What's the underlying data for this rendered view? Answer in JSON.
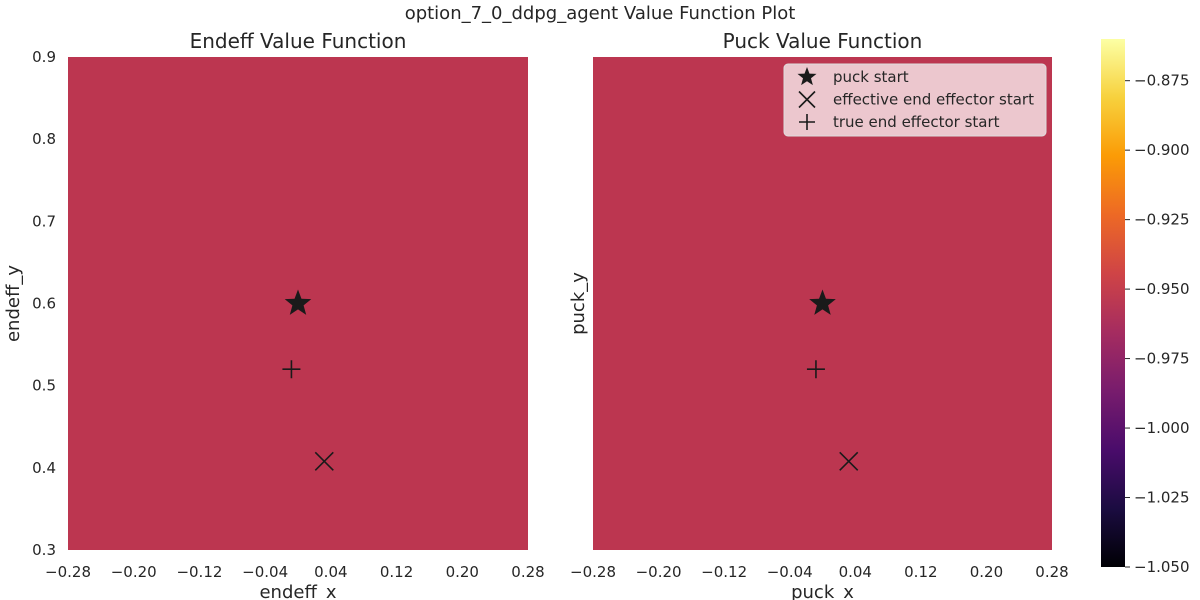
{
  "figure": {
    "suptitle": "option_7_0_ddpg_agent Value Function Plot"
  },
  "chart_data": [
    {
      "type": "heatmap",
      "title": "Endeff Value Function",
      "xlabel": "endeff_x",
      "ylabel": "endeff_y",
      "xlim": [
        -0.28,
        0.28
      ],
      "ylim": [
        0.3,
        0.9
      ],
      "xticks": [
        "−0.28",
        "−0.20",
        "−0.12",
        "−0.04",
        "0.04",
        "0.12",
        "0.20",
        "0.28"
      ],
      "xtick_values": [
        -0.28,
        -0.2,
        -0.12,
        -0.04,
        0.04,
        0.12,
        0.2,
        0.28
      ],
      "yticks": [
        "0.3",
        "0.4",
        "0.5",
        "0.6",
        "0.7",
        "0.8",
        "0.9"
      ],
      "ytick_values": [
        0.3,
        0.4,
        0.5,
        0.6,
        0.7,
        0.8,
        0.9
      ],
      "uniform_value": -0.95,
      "fill_color": "#bc3650",
      "markers": [
        {
          "name": "puck start",
          "shape": "star",
          "x": 0.0,
          "y": 0.6
        },
        {
          "name": "true end effector start",
          "shape": "plus",
          "x": -0.008,
          "y": 0.52
        },
        {
          "name": "effective end effector start",
          "shape": "x",
          "x": 0.032,
          "y": 0.408
        }
      ]
    },
    {
      "type": "heatmap",
      "title": "Puck Value Function",
      "xlabel": "puck_x",
      "ylabel": "puck_y",
      "xlim": [
        -0.28,
        0.28
      ],
      "ylim": [
        0.3,
        0.9
      ],
      "xticks": [
        "−0.28",
        "−0.20",
        "−0.12",
        "−0.04",
        "0.04",
        "0.12",
        "0.20",
        "0.28"
      ],
      "xtick_values": [
        -0.28,
        -0.2,
        -0.12,
        -0.04,
        0.04,
        0.12,
        0.2,
        0.28
      ],
      "uniform_value": -0.95,
      "fill_color": "#bc3650",
      "markers": [
        {
          "name": "puck start",
          "shape": "star",
          "x": 0.0,
          "y": 0.6
        },
        {
          "name": "true end effector start",
          "shape": "plus",
          "x": -0.008,
          "y": 0.52
        },
        {
          "name": "effective end effector start",
          "shape": "x",
          "x": 0.032,
          "y": 0.408
        }
      ],
      "legend": {
        "location": "upper right",
        "entries": [
          {
            "label": "puck start",
            "shape": "star"
          },
          {
            "label": "effective end effector start",
            "shape": "x"
          },
          {
            "label": "true end effector start",
            "shape": "plus"
          }
        ]
      }
    }
  ],
  "colorbar": {
    "colormap": "inferno",
    "vmin": -1.05,
    "vmax": -0.86,
    "ticks": [
      {
        "value": -0.875,
        "label": "−0.875"
      },
      {
        "value": -0.9,
        "label": "−0.900"
      },
      {
        "value": -0.925,
        "label": "−0.925"
      },
      {
        "value": -0.95,
        "label": "−0.950"
      },
      {
        "value": -0.975,
        "label": "−0.975"
      },
      {
        "value": -1.0,
        "label": "−1.000"
      },
      {
        "value": -1.025,
        "label": "−1.025"
      },
      {
        "value": -1.05,
        "label": "−1.050"
      }
    ],
    "gradient_stops": [
      "#000004",
      "#1b0c41",
      "#4a0c6b",
      "#781c6d",
      "#a52c60",
      "#cf4446",
      "#ed6925",
      "#fb9b06",
      "#f7d13d",
      "#fcffa4"
    ]
  }
}
